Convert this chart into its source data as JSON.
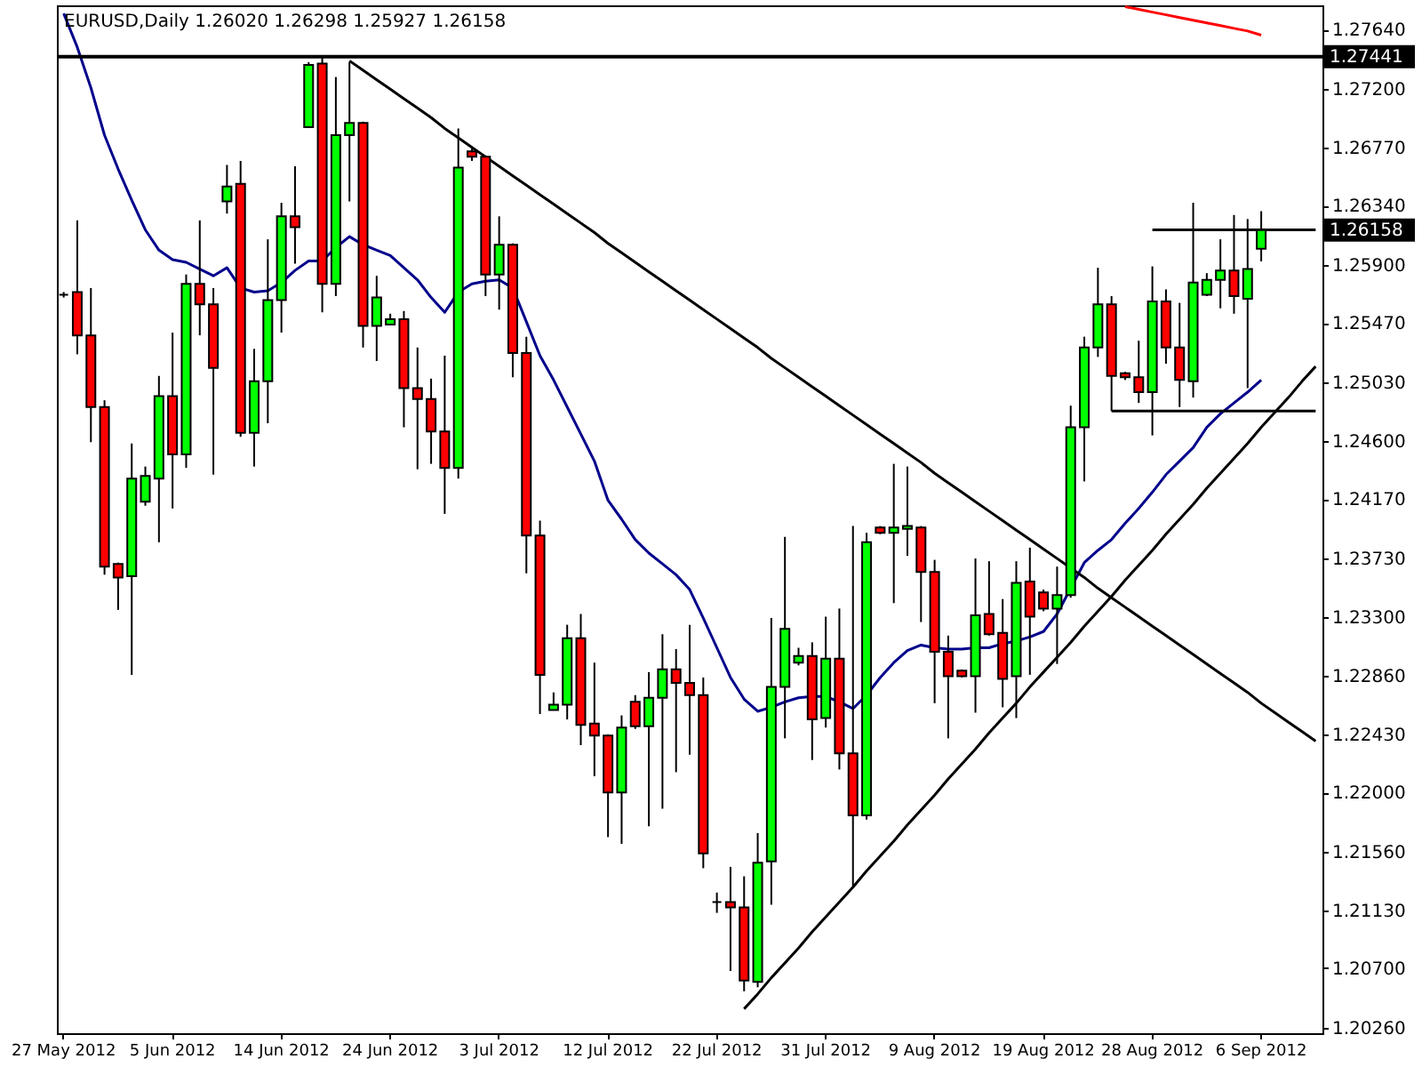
{
  "chart_data": {
    "type": "candlestick",
    "title": "EURUSD,Daily  1.26020 1.26298 1.25927 1.26158",
    "categories": [
      "27 May 2012",
      null,
      null,
      null,
      null,
      null,
      null,
      null,
      "5 Jun 2012",
      null,
      null,
      null,
      null,
      null,
      null,
      null,
      "14 Jun 2012",
      null,
      null,
      null,
      null,
      null,
      null,
      null,
      "24 Jun 2012",
      null,
      null,
      null,
      null,
      null,
      null,
      null,
      "3 Jul 2012",
      null,
      null,
      null,
      null,
      null,
      null,
      null,
      "12 Jul 2012",
      null,
      null,
      null,
      null,
      null,
      null,
      null,
      "22 Jul 2012",
      null,
      null,
      null,
      null,
      null,
      null,
      null,
      "31 Jul 2012",
      null,
      null,
      null,
      null,
      null,
      null,
      null,
      "9 Aug 2012",
      null,
      null,
      null,
      null,
      null,
      null,
      null,
      "19 Aug 2012",
      null,
      null,
      null,
      null,
      null,
      null,
      null,
      "28 Aug 2012",
      null,
      null,
      null,
      null,
      null,
      null,
      null,
      "6 Sep 2012",
      null,
      null,
      null,
      null
    ],
    "ohlc": [
      [
        1.2568,
        1.257,
        1.2566,
        1.2568
      ],
      [
        1.257,
        1.2623,
        1.2524,
        1.2538
      ],
      [
        1.2538,
        1.2573,
        1.2459,
        1.2485
      ],
      [
        1.2485,
        1.249,
        1.2361,
        1.2367
      ],
      [
        1.2369,
        1.237,
        1.2335,
        1.2359
      ],
      [
        1.236,
        1.2458,
        1.2287,
        1.2432
      ],
      [
        1.2415,
        1.2441,
        1.2412,
        1.2434
      ],
      [
        1.2432,
        1.2508,
        1.2385,
        1.2493
      ],
      [
        1.2493,
        1.254,
        1.241,
        1.245
      ],
      [
        1.245,
        1.2583,
        1.244,
        1.2576
      ],
      [
        1.2576,
        1.2623,
        1.2538,
        1.2561
      ],
      [
        1.2561,
        1.2573,
        1.2435,
        1.2514
      ],
      [
        1.2637,
        1.2664,
        1.2628,
        1.2648
      ],
      [
        1.265,
        1.2667,
        1.2463,
        1.2466
      ],
      [
        1.2466,
        1.2528,
        1.2441,
        1.2504
      ],
      [
        1.2504,
        1.2609,
        1.2473,
        1.2564
      ],
      [
        1.2564,
        1.2636,
        1.254,
        1.2626
      ],
      [
        1.2626,
        1.2663,
        1.2591,
        1.2618
      ],
      [
        1.2692,
        1.274,
        1.2692,
        1.2738
      ],
      [
        1.2739,
        1.2745,
        1.2555,
        1.2576
      ],
      [
        1.2576,
        1.2729,
        1.2567,
        1.2686
      ],
      [
        1.2686,
        1.274,
        1.2637,
        1.2695
      ],
      [
        1.2695,
        1.2696,
        1.2529,
        1.2545
      ],
      [
        1.2545,
        1.2582,
        1.2519,
        1.2566
      ],
      [
        1.2546,
        1.2554,
        1.2546,
        1.255
      ],
      [
        1.255,
        1.2556,
        1.247,
        1.2499
      ],
      [
        1.2499,
        1.2529,
        1.2439,
        1.2491
      ],
      [
        1.2491,
        1.2506,
        1.2443,
        1.2467
      ],
      [
        1.2467,
        1.2523,
        1.2406,
        1.244
      ],
      [
        1.244,
        1.2691,
        1.2432,
        1.2662
      ],
      [
        1.2674,
        1.2676,
        1.2667,
        1.267
      ],
      [
        1.267,
        1.2671,
        1.2567,
        1.2583
      ],
      [
        1.2583,
        1.2626,
        1.2557,
        1.2605
      ],
      [
        1.2605,
        1.2606,
        1.2507,
        1.2525
      ],
      [
        1.2525,
        1.2537,
        1.2362,
        1.239
      ],
      [
        1.239,
        1.2401,
        1.2258,
        1.2287
      ],
      [
        1.2261,
        1.2274,
        1.2261,
        1.2265
      ],
      [
        1.2265,
        1.2324,
        1.2254,
        1.2314
      ],
      [
        1.2314,
        1.2332,
        1.2235,
        1.225
      ],
      [
        1.2251,
        1.2296,
        1.2212,
        1.2242
      ],
      [
        1.2242,
        1.2243,
        1.2167,
        1.22
      ],
      [
        1.22,
        1.2257,
        1.2162,
        1.2248
      ],
      [
        1.2267,
        1.2272,
        1.2247,
        1.2249
      ],
      [
        1.2249,
        1.2289,
        1.2175,
        1.227
      ],
      [
        1.227,
        1.2317,
        1.2188,
        1.2291
      ],
      [
        1.2291,
        1.2306,
        1.2215,
        1.2281
      ],
      [
        1.2281,
        1.2324,
        1.2228,
        1.2272
      ],
      [
        1.2272,
        1.2285,
        1.2144,
        1.2155
      ],
      [
        1.2119,
        1.2126,
        1.2111,
        1.2119
      ],
      [
        1.2119,
        1.2145,
        1.2068,
        1.2115
      ],
      [
        1.2115,
        1.2138,
        1.2053,
        1.2061
      ],
      [
        1.206,
        1.217,
        1.2056,
        1.2148
      ],
      [
        1.2149,
        1.2329,
        1.2117,
        1.2278
      ],
      [
        1.2278,
        1.2389,
        1.224,
        1.2321
      ],
      [
        1.2296,
        1.2307,
        1.2294,
        1.2301
      ],
      [
        1.2301,
        1.2311,
        1.2224,
        1.2254
      ],
      [
        1.2255,
        1.233,
        1.2248,
        1.2299
      ],
      [
        1.2299,
        1.2336,
        1.2217,
        1.2229
      ],
      [
        1.2229,
        1.2397,
        1.2131,
        1.2183
      ],
      [
        1.2183,
        1.2392,
        1.218,
        1.2385
      ],
      [
        1.2396,
        1.2397,
        1.2391,
        1.2392
      ],
      [
        1.2392,
        1.2443,
        1.234,
        1.2396
      ],
      [
        1.2395,
        1.2441,
        1.2375,
        1.2397
      ],
      [
        1.2396,
        1.2397,
        1.2326,
        1.2363
      ],
      [
        1.2363,
        1.2372,
        1.2266,
        1.2304
      ],
      [
        1.2304,
        1.2316,
        1.224,
        1.2286
      ],
      [
        1.229,
        1.2291,
        1.2285,
        1.2286
      ],
      [
        1.2286,
        1.2373,
        1.2259,
        1.2331
      ],
      [
        1.2332,
        1.2371,
        1.2316,
        1.2317
      ],
      [
        1.2318,
        1.2343,
        1.2263,
        1.2284
      ],
      [
        1.2286,
        1.2371,
        1.2255,
        1.2355
      ],
      [
        1.2356,
        1.2381,
        1.2287,
        1.233
      ],
      [
        1.2348,
        1.235,
        1.2334,
        1.2336
      ],
      [
        1.2336,
        1.2367,
        1.2295,
        1.2346
      ],
      [
        1.2346,
        1.2486,
        1.2344,
        1.247
      ],
      [
        1.247,
        1.2537,
        1.243,
        1.2529
      ],
      [
        1.2529,
        1.2588,
        1.2522,
        1.2561
      ],
      [
        1.2561,
        1.2567,
        1.2482,
        1.2508
      ],
      [
        1.251,
        1.2511,
        1.2505,
        1.2507
      ],
      [
        1.2507,
        1.2534,
        1.2488,
        1.2496
      ],
      [
        1.2496,
        1.2589,
        1.2464,
        1.2563
      ],
      [
        1.2563,
        1.2572,
        1.2517,
        1.2529
      ],
      [
        1.2529,
        1.2562,
        1.2485,
        1.2505
      ],
      [
        1.2504,
        1.2636,
        1.2492,
        1.2577
      ],
      [
        1.2568,
        1.2584,
        1.2567,
        1.2579
      ],
      [
        1.2579,
        1.2609,
        1.2558,
        1.2586
      ],
      [
        1.2586,
        1.2627,
        1.2554,
        1.2567
      ],
      [
        1.2565,
        1.2624,
        1.2499,
        1.2587
      ],
      [
        1.2602,
        1.26298,
        1.25927,
        1.26158
      ],
      null,
      null,
      null,
      null
    ],
    "colors": [
      "#000000",
      "#ff0000",
      "#ff0000",
      "#ff0000",
      "#ff0000",
      "#00ff00",
      "#00ff00",
      "#00ff00",
      "#ff0000",
      "#00ff00",
      "#ff0000",
      "#ff0000",
      "#00ff00",
      "#ff0000",
      "#00ff00",
      "#00ff00",
      "#00ff00",
      "#ff0000",
      "#00ff00",
      "#ff0000",
      "#00ff00",
      "#00ff00",
      "#ff0000",
      "#00ff00",
      "#00ff00",
      "#ff0000",
      "#ff0000",
      "#ff0000",
      "#ff0000",
      "#00ff00",
      "#ff0000",
      "#ff0000",
      "#00ff00",
      "#ff0000",
      "#ff0000",
      "#ff0000",
      "#00ff00",
      "#00ff00",
      "#ff0000",
      "#ff0000",
      "#ff0000",
      "#00ff00",
      "#ff0000",
      "#00ff00",
      "#00ff00",
      "#ff0000",
      "#ff0000",
      "#ff0000",
      "#000000",
      "#ff0000",
      "#ff0000",
      "#00ff00",
      "#00ff00",
      "#00ff00",
      "#00ff00",
      "#ff0000",
      "#00ff00",
      "#ff0000",
      "#ff0000",
      "#00ff00",
      "#ff0000",
      "#00ff00",
      "#00ff00",
      "#ff0000",
      "#ff0000",
      "#ff0000",
      "#ff0000",
      "#00ff00",
      "#ff0000",
      "#ff0000",
      "#00ff00",
      "#ff0000",
      "#ff0000",
      "#00ff00",
      "#00ff00",
      "#00ff00",
      "#00ff00",
      "#ff0000",
      "#ff0000",
      "#ff0000",
      "#00ff00",
      "#ff0000",
      "#ff0000",
      "#00ff00",
      "#00ff00",
      "#00ff00",
      "#ff0000",
      "#00ff00",
      "#00ff00",
      null,
      null,
      null,
      null
    ],
    "series": [
      {
        "type": "line",
        "color": "#00008b",
        "values": [
          1.2776,
          1.2751,
          1.2721,
          1.2686,
          1.2661,
          1.2638,
          1.2616,
          1.2601,
          1.2594,
          1.2592,
          1.2587,
          1.2582,
          1.2588,
          1.2573,
          1.257,
          1.2571,
          1.2577,
          1.2586,
          1.2593,
          1.2593,
          1.2603,
          1.2611,
          1.2605,
          1.2601,
          1.2597,
          1.2588,
          1.2579,
          1.2566,
          1.2555,
          1.257,
          1.2576,
          1.2578,
          1.2579,
          1.2573,
          1.2548,
          1.2523,
          1.2505,
          1.2485,
          1.2465,
          1.2445,
          1.2416,
          1.2402,
          1.2387,
          1.2377,
          1.2369,
          1.2361,
          1.235,
          1.2329,
          1.2307,
          1.2285,
          1.2269,
          1.226,
          1.2263,
          1.2267,
          1.227,
          1.2271,
          1.2271,
          1.2267,
          1.2262,
          1.2272,
          1.2285,
          1.2296,
          1.2305,
          1.2309,
          1.2307,
          1.2306,
          1.2306,
          1.2307,
          1.2307,
          1.231,
          1.2312,
          1.2315,
          1.2319,
          1.2332,
          null,
          1.237,
          1.2379,
          1.2387,
          1.2399,
          1.241,
          1.2422,
          1.2435,
          1.2445,
          1.2455,
          1.247,
          1.248,
          1.2488,
          1.2496,
          1.2505,
          null,
          null,
          null,
          null
        ]
      },
      {
        "type": "line",
        "color": "#ff0000",
        "values": [
          null,
          null,
          null,
          null,
          null,
          null,
          null,
          null,
          null,
          null,
          null,
          null,
          null,
          null,
          null,
          null,
          null,
          null,
          null,
          null,
          null,
          null,
          null,
          null,
          null,
          null,
          null,
          null,
          null,
          null,
          null,
          null,
          null,
          null,
          null,
          null,
          null,
          null,
          null,
          null,
          null,
          null,
          null,
          null,
          null,
          null,
          null,
          null,
          null,
          null,
          null,
          null,
          null,
          null,
          null,
          null,
          null,
          null,
          null,
          null,
          null,
          null,
          null,
          null,
          null,
          null,
          null,
          null,
          null,
          null,
          null,
          null,
          null,
          null,
          null,
          null,
          null,
          null,
          1.2781,
          1.2779,
          1.2777,
          1.2775,
          1.2773,
          1.2771,
          1.2769,
          1.2767,
          1.2765,
          1.2763,
          1.276,
          null,
          null,
          null,
          null
        ]
      },
      {
        "type": "line",
        "color": "#000000",
        "values": [
          null,
          null,
          null,
          null,
          null,
          null,
          null,
          null,
          null,
          null,
          null,
          null,
          null,
          null,
          null,
          null,
          null,
          null,
          null,
          null,
          null,
          1.2741,
          1.2734,
          1.2727,
          1.272,
          1.2713,
          1.2706,
          1.2699,
          1.2691,
          1.2684,
          1.2677,
          1.267,
          1.2663,
          1.2656,
          1.2649,
          1.2642,
          1.2635,
          1.2628,
          1.2621,
          1.2614,
          1.2606,
          1.2599,
          1.2592,
          1.2585,
          1.2578,
          1.2571,
          1.2564,
          1.2557,
          1.255,
          1.2543,
          1.2536,
          1.2529,
          1.2521,
          1.2514,
          1.2507,
          1.25,
          1.2493,
          1.2486,
          1.2479,
          1.2472,
          1.2465,
          1.2458,
          1.2451,
          1.2444,
          1.2436,
          1.2429,
          1.2422,
          1.2415,
          1.2408,
          1.2401,
          1.2394,
          1.2387,
          1.238,
          1.2373,
          1.2366,
          1.2359,
          1.2351,
          1.2344,
          1.2337,
          1.233,
          1.2323,
          1.2316,
          1.2309,
          1.2302,
          1.2295,
          1.2288,
          1.2281,
          1.2274,
          1.2266,
          1.2259,
          1.2252,
          1.2245,
          1.2238
        ]
      },
      {
        "type": "line",
        "color": "#000000",
        "values": [
          null,
          null,
          null,
          null,
          null,
          null,
          null,
          null,
          null,
          null,
          null,
          null,
          null,
          null,
          null,
          null,
          null,
          null,
          null,
          null,
          null,
          null,
          null,
          null,
          null,
          null,
          null,
          null,
          null,
          null,
          null,
          null,
          null,
          null,
          null,
          null,
          null,
          null,
          null,
          null,
          null,
          null,
          null,
          null,
          null,
          null,
          null,
          null,
          null,
          null,
          1.204,
          1.2051,
          1.2063,
          1.2074,
          1.2085,
          1.2097,
          1.2108,
          1.2119,
          1.213,
          1.2142,
          1.2153,
          1.2164,
          1.2176,
          1.2187,
          1.2198,
          1.221,
          1.2221,
          1.2232,
          1.2244,
          1.2255,
          1.2266,
          1.2278,
          1.2289,
          1.23,
          1.2311,
          1.2323,
          1.2334,
          1.2345,
          1.2357,
          1.2368,
          1.2379,
          1.2391,
          1.2402,
          1.2413,
          1.2425,
          1.2436,
          1.2447,
          1.2458,
          1.247,
          1.2481,
          1.2492,
          1.2504,
          1.2515
        ]
      },
      {
        "type": "line",
        "color": "#000000",
        "values": [
          null,
          null,
          null,
          null,
          null,
          null,
          null,
          null,
          null,
          null,
          null,
          null,
          null,
          null,
          null,
          null,
          null,
          null,
          null,
          null,
          null,
          null,
          null,
          null,
          null,
          null,
          null,
          null,
          null,
          null,
          null,
          null,
          null,
          null,
          null,
          null,
          null,
          null,
          null,
          null,
          null,
          null,
          null,
          null,
          null,
          null,
          null,
          null,
          null,
          null,
          null,
          null,
          null,
          null,
          null,
          null,
          null,
          null,
          null,
          null,
          null,
          null,
          null,
          null,
          null,
          null,
          null,
          null,
          null,
          null,
          null,
          null,
          null,
          null,
          null,
          null,
          null,
          1.2482,
          1.2482,
          1.2482,
          1.2482,
          1.2482,
          1.2482,
          1.2482,
          1.2482,
          1.2482,
          1.2482,
          1.2482,
          1.2482,
          1.2482,
          1.2482,
          1.2482,
          1.2482
        ]
      },
      {
        "type": "line",
        "color": "#000000",
        "values": [
          null,
          null,
          null,
          null,
          null,
          null,
          null,
          null,
          null,
          null,
          null,
          null,
          null,
          null,
          null,
          null,
          null,
          null,
          null,
          null,
          null,
          null,
          null,
          null,
          null,
          null,
          null,
          null,
          null,
          null,
          null,
          null,
          null,
          null,
          null,
          null,
          null,
          null,
          null,
          null,
          null,
          null,
          null,
          null,
          null,
          null,
          null,
          null,
          null,
          null,
          null,
          null,
          null,
          null,
          null,
          null,
          null,
          null,
          null,
          null,
          null,
          null,
          null,
          null,
          null,
          null,
          null,
          null,
          null,
          null,
          null,
          null,
          null,
          null,
          null,
          null,
          null,
          null,
          null,
          null,
          1.2616,
          1.2616,
          1.2616,
          1.2616,
          1.2616,
          1.2616,
          1.2616,
          1.2616,
          1.2616,
          1.2616,
          1.2616,
          1.2616,
          1.2616
        ]
      }
    ],
    "ylim": [
      1.2022,
      1.2782
    ],
    "yticks": [
      {
        "value": 1.2764,
        "label": "1.27640"
      },
      {
        "value": 1.272,
        "label": "1.27200"
      },
      {
        "value": 1.2677,
        "label": "1.26770"
      },
      {
        "value": 1.2634,
        "label": "1.26340"
      },
      {
        "value": 1.259,
        "label": "1.25900"
      },
      {
        "value": 1.2547,
        "label": "1.25470"
      },
      {
        "value": 1.2503,
        "label": "1.25030"
      },
      {
        "value": 1.246,
        "label": "1.24600"
      },
      {
        "value": 1.2417,
        "label": "1.24170"
      },
      {
        "value": 1.2373,
        "label": "1.23730"
      },
      {
        "value": 1.233,
        "label": "1.23300"
      },
      {
        "value": 1.2286,
        "label": "1.22860"
      },
      {
        "value": 1.2243,
        "label": "1.22430"
      },
      {
        "value": 1.22,
        "label": "1.22000"
      },
      {
        "value": 1.2156,
        "label": "1.21560"
      },
      {
        "value": 1.2113,
        "label": "1.21130"
      },
      {
        "value": 1.207,
        "label": "1.20700"
      },
      {
        "value": 1.2026,
        "label": "1.20260"
      }
    ],
    "ref_lines": [
      {
        "axis": "y",
        "value": 1.27441,
        "label": "1.27441",
        "color": "#000000"
      }
    ],
    "annotations": [
      "1.26158"
    ]
  }
}
